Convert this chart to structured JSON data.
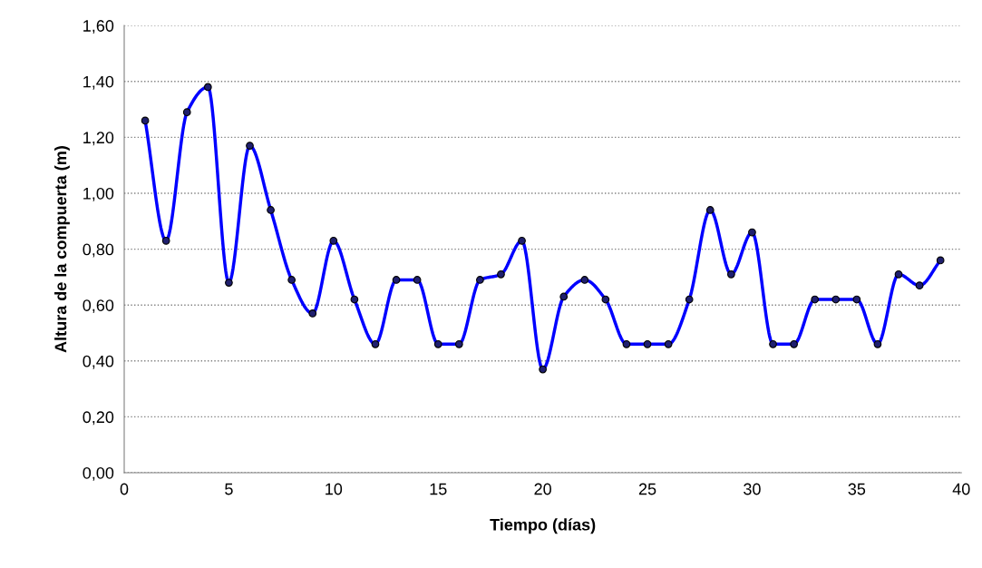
{
  "chart_data": {
    "type": "line",
    "xlabel": "Tiempo (días)",
    "ylabel": "Altura de la compuerta (m)",
    "x": [
      1,
      2,
      3,
      4,
      5,
      6,
      7,
      8,
      9,
      10,
      11,
      12,
      13,
      14,
      15,
      16,
      17,
      18,
      19,
      20,
      21,
      22,
      23,
      24,
      25,
      26,
      27,
      28,
      29,
      30,
      31,
      32,
      33,
      34,
      35,
      36,
      37,
      38,
      39
    ],
    "series": [
      {
        "color": "#0000ff",
        "values": [
          1.26,
          0.83,
          1.29,
          1.38,
          0.68,
          1.17,
          0.94,
          0.69,
          0.57,
          0.83,
          0.62,
          0.46,
          0.69,
          0.69,
          0.46,
          0.46,
          0.69,
          0.71,
          0.83,
          0.37,
          0.63,
          0.69,
          0.62,
          0.46,
          0.46,
          0.46,
          0.62,
          0.94,
          0.71,
          0.86,
          0.46,
          0.46,
          0.62,
          0.62,
          0.62,
          0.46,
          0.71,
          0.67,
          0.76
        ]
      }
    ],
    "xlim": [
      0,
      40
    ],
    "xticks": [
      0,
      5,
      10,
      15,
      20,
      25,
      30,
      35,
      40
    ],
    "ylim": [
      0,
      1.6
    ],
    "yticks": [
      {
        "value": 0,
        "label": "0,00"
      },
      {
        "value": 0.2,
        "label": "0,20"
      },
      {
        "value": 0.4,
        "label": "0,40"
      },
      {
        "value": 0.6,
        "label": "0,60"
      },
      {
        "value": 0.8,
        "label": "0,80"
      },
      {
        "value": 1.0,
        "label": "1,00"
      },
      {
        "value": 1.2,
        "label": "1,20"
      },
      {
        "value": 1.4,
        "label": "1,40"
      },
      {
        "value": 1.6,
        "label": "1,60"
      }
    ],
    "grid": "y",
    "marker": "circle",
    "line_style": "solid"
  }
}
